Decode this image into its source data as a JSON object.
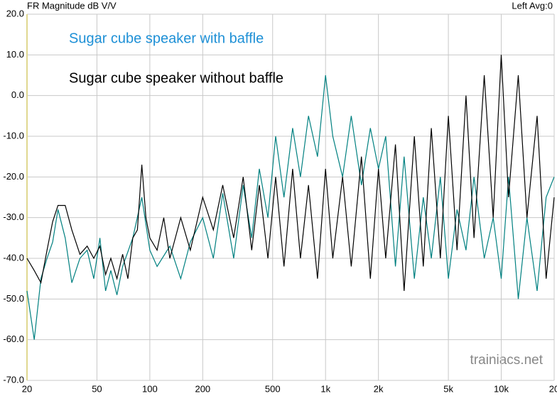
{
  "chart_data": {
    "type": "line",
    "title": "FR Magnitude dB V/V",
    "subtitle": "Left  Avg:0",
    "annotations": [
      "trainiacs.net"
    ],
    "log_x": true,
    "grid": true,
    "xlim": [
      20,
      20000
    ],
    "ylim": [
      -70,
      20
    ],
    "xticks": [
      20,
      50,
      100,
      200,
      500,
      {
        "value": 1000,
        "label": "1k"
      },
      {
        "value": 2000,
        "label": "2k"
      },
      {
        "value": 5000,
        "label": "5k"
      },
      {
        "value": 10000,
        "label": "10k"
      },
      {
        "value": 20000,
        "label": "20"
      }
    ],
    "yticks": [
      {
        "value": 20,
        "label": "20.0"
      },
      {
        "value": 10,
        "label": "10.0"
      },
      {
        "value": 0,
        "label": "0.0"
      },
      {
        "value": -10,
        "label": "-10.0"
      },
      {
        "value": -20,
        "label": "-20.0"
      },
      {
        "value": -30,
        "label": "-30.0"
      },
      {
        "value": -40,
        "label": "-40.0"
      },
      {
        "value": -50,
        "label": "-50.0"
      },
      {
        "value": -60,
        "label": "-60.0"
      },
      {
        "value": -70,
        "label": "-70.0"
      }
    ],
    "series": [
      {
        "name": "Sugar cube speaker with baffle",
        "color": "#008080",
        "label_color": "#1e90d6",
        "x": [
          20,
          22,
          24,
          26,
          28,
          30,
          33,
          36,
          40,
          44,
          48,
          52,
          56,
          60,
          65,
          70,
          80,
          90,
          100,
          110,
          130,
          150,
          170,
          200,
          230,
          260,
          300,
          340,
          380,
          420,
          470,
          520,
          580,
          650,
          720,
          800,
          900,
          1000,
          1100,
          1250,
          1400,
          1600,
          1800,
          2000,
          2200,
          2500,
          2800,
          3200,
          3600,
          4000,
          4500,
          5000,
          5600,
          6300,
          7000,
          8000,
          9000,
          10000,
          11000,
          12500,
          14000,
          16000,
          18000,
          20000
        ],
        "values": [
          -48,
          -60,
          -45,
          -40,
          -36,
          -28,
          -35,
          -46,
          -40,
          -38,
          -45,
          -35,
          -48,
          -43,
          -49,
          -42,
          -35,
          -25,
          -38,
          -42,
          -37,
          -45,
          -36,
          -30,
          -40,
          -24,
          -40,
          -22,
          -35,
          -18,
          -30,
          -10,
          -25,
          -8,
          -20,
          -5,
          -15,
          5,
          -10,
          -20,
          -5,
          -22,
          -8,
          -18,
          -10,
          -42,
          -15,
          -45,
          -25,
          -40,
          -20,
          -45,
          -28,
          -38,
          -20,
          -40,
          -30,
          -45,
          -20,
          -50,
          -30,
          -48,
          -25,
          -20
        ]
      },
      {
        "name": "Sugar cube speaker without baffle",
        "color": "#000000",
        "label_color": "#000000",
        "x": [
          20,
          22,
          24,
          26,
          28,
          30,
          33,
          36,
          40,
          44,
          48,
          52,
          56,
          60,
          65,
          70,
          75,
          80,
          85,
          90,
          95,
          100,
          110,
          120,
          130,
          150,
          170,
          200,
          230,
          260,
          300,
          340,
          380,
          420,
          470,
          520,
          580,
          650,
          720,
          800,
          900,
          1000,
          1100,
          1250,
          1400,
          1600,
          1800,
          2000,
          2200,
          2500,
          2800,
          3200,
          3600,
          4000,
          4500,
          5000,
          5600,
          6300,
          7000,
          8000,
          9000,
          10000,
          11000,
          12500,
          14000,
          16000,
          18000,
          20000
        ],
        "values": [
          -40,
          -43,
          -46,
          -38,
          -31,
          -27,
          -27,
          -33,
          -39,
          -37,
          -40,
          -37,
          -44,
          -40,
          -45,
          -39,
          -45,
          -35,
          -33,
          -17,
          -30,
          -35,
          -38,
          -30,
          -40,
          -30,
          -38,
          -25,
          -33,
          -22,
          -35,
          -20,
          -38,
          -22,
          -40,
          -20,
          -42,
          -18,
          -40,
          -22,
          -45,
          -18,
          -40,
          -20,
          -42,
          -15,
          -45,
          -18,
          -40,
          -12,
          -48,
          -10,
          -42,
          -8,
          -40,
          -5,
          -38,
          0,
          -35,
          5,
          -30,
          10,
          -25,
          5,
          -30,
          -5,
          -45,
          -25
        ]
      }
    ]
  }
}
